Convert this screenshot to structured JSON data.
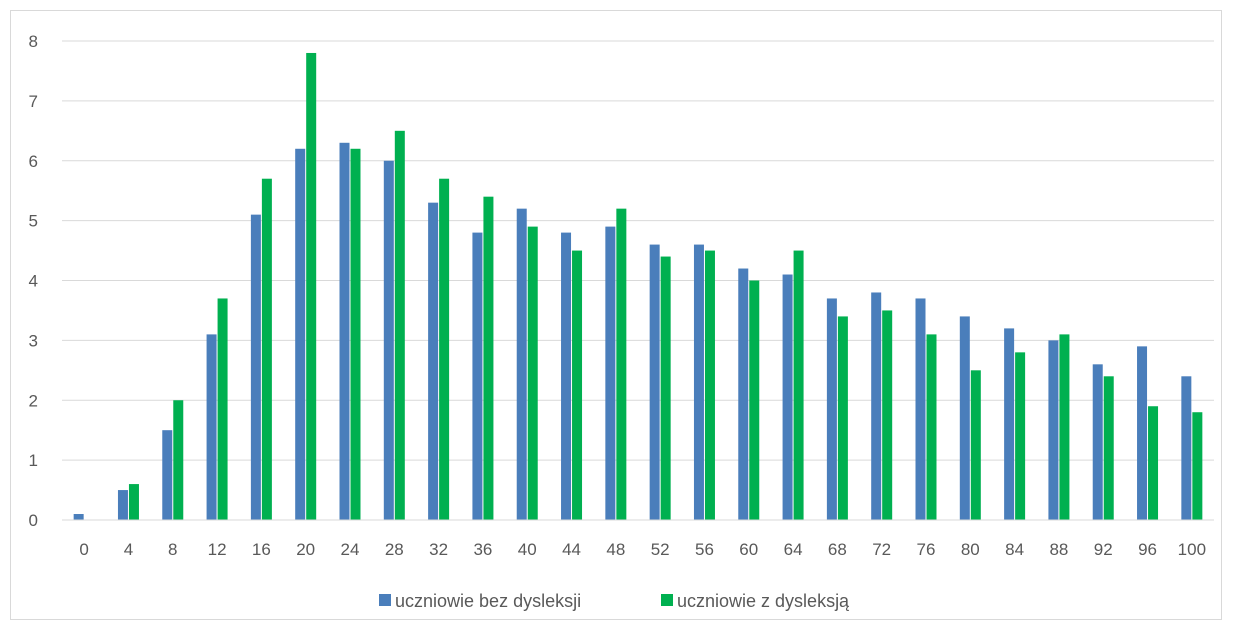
{
  "chart_data": {
    "type": "bar",
    "title": "",
    "xlabel": "",
    "ylabel": "",
    "categories": [
      "0",
      "4",
      "8",
      "12",
      "16",
      "20",
      "24",
      "28",
      "32",
      "36",
      "40",
      "44",
      "48",
      "52",
      "56",
      "60",
      "64",
      "68",
      "72",
      "76",
      "80",
      "84",
      "88",
      "92",
      "96",
      "100"
    ],
    "series": [
      {
        "name": "uczniowie bez dysleksji",
        "color": "#4a7ebb",
        "values": [
          0.1,
          0.5,
          1.5,
          3.1,
          5.1,
          6.2,
          6.3,
          6.0,
          5.3,
          4.8,
          5.2,
          4.8,
          4.9,
          4.6,
          4.6,
          4.2,
          4.1,
          3.7,
          3.8,
          3.7,
          3.4,
          3.2,
          3.0,
          2.6,
          2.9,
          2.4
        ]
      },
      {
        "name": "uczniowie z dysleksją",
        "color": "#00b050",
        "values": [
          0.0,
          0.6,
          2.0,
          3.7,
          5.7,
          7.8,
          6.2,
          6.5,
          5.7,
          5.4,
          4.9,
          4.5,
          5.2,
          4.4,
          4.5,
          4.0,
          4.5,
          3.4,
          3.5,
          3.1,
          2.5,
          2.8,
          3.1,
          2.4,
          1.9,
          1.8
        ]
      }
    ],
    "ylim": [
      0,
      8
    ],
    "yticks": [
      "0",
      "1",
      "2",
      "3",
      "4",
      "5",
      "6",
      "7",
      "8"
    ],
    "grid": true,
    "grid_color": "#d9d9d9",
    "legend_position": "bottom"
  }
}
